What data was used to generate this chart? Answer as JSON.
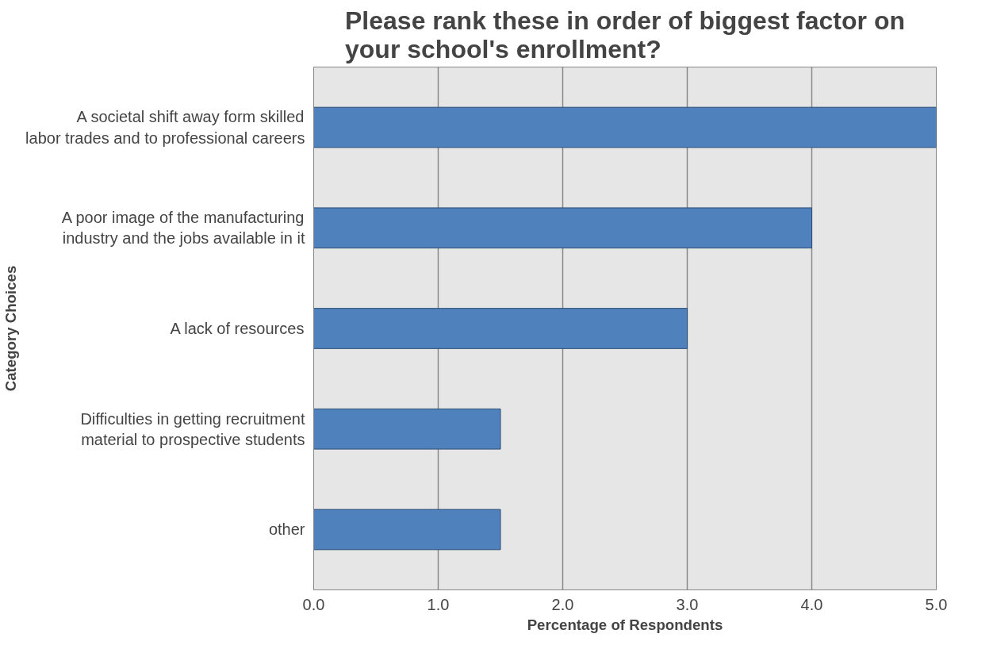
{
  "chart_data": {
    "type": "bar",
    "orientation": "horizontal",
    "title": "Please rank these in order of biggest factor on your school's enrollment?",
    "xlabel": "Percentage of Respondents",
    "ylabel": "Category Choices",
    "categories": [
      "A societal shift away form skilled\nlabor trades and to professional careers",
      "A poor image of the manufacturing\nindustry and the jobs available in it",
      "A lack of resources",
      "Difficulties in getting recruitment\nmaterial to prospective students",
      "other"
    ],
    "values": [
      5.0,
      4.0,
      3.0,
      1.5,
      1.5
    ],
    "color": "#4f81bd",
    "xlim": [
      0,
      5
    ],
    "xticks": [
      {
        "value": 0,
        "label": "0.0"
      },
      {
        "value": 1,
        "label": "1.0"
      },
      {
        "value": 2,
        "label": "2.0"
      },
      {
        "value": 3,
        "label": "3.0"
      },
      {
        "value": 4,
        "label": "4.0"
      },
      {
        "value": 5,
        "label": "5.0"
      }
    ],
    "grid": "x"
  }
}
